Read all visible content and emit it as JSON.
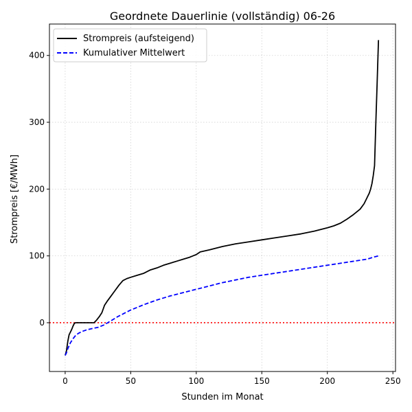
{
  "chart_data": {
    "type": "line",
    "title": "Geordnete Dauerlinie (vollständig) 06-26",
    "xlabel": "Stunden im Monat",
    "ylabel": "Strompreis [€/MWh]",
    "xlim": [
      -12,
      252
    ],
    "ylim": [
      -73,
      447
    ],
    "xticks": [
      0,
      50,
      100,
      150,
      200,
      250
    ],
    "yticks": [
      0,
      100,
      200,
      300,
      400
    ],
    "grid": true,
    "legend_position": "top-left",
    "reference_line": {
      "y": 0,
      "color": "#ff0000",
      "style": "dotted"
    },
    "series": [
      {
        "name": "Strompreis (aufsteigend)",
        "color": "#000000",
        "style": "solid",
        "x": [
          0,
          1,
          2,
          3,
          4,
          5,
          6,
          7,
          8,
          9,
          10,
          12,
          15,
          18,
          20,
          22,
          24,
          26,
          28,
          30,
          32,
          35,
          38,
          41,
          44,
          47,
          50,
          55,
          60,
          65,
          70,
          75,
          80,
          85,
          90,
          95,
          100,
          103,
          110,
          120,
          130,
          140,
          150,
          160,
          170,
          180,
          190,
          200,
          205,
          210,
          215,
          220,
          225,
          228,
          230,
          232,
          233,
          234,
          235,
          236,
          237,
          238,
          239
        ],
        "values": [
          -49,
          -42,
          -28,
          -18,
          -14,
          -10,
          -5,
          -1,
          0,
          0,
          0,
          0,
          0,
          0,
          0,
          0,
          4,
          9,
          15,
          26,
          32,
          40,
          48,
          56,
          63,
          66,
          68,
          71,
          74,
          79,
          82,
          86,
          89,
          92,
          95,
          98,
          102,
          106,
          109,
          114,
          118,
          121,
          124,
          127,
          130,
          133,
          137,
          142,
          145,
          149,
          155,
          162,
          170,
          178,
          186,
          194,
          200,
          208,
          220,
          235,
          300,
          360,
          423
        ]
      },
      {
        "name": "Kumulativer Mittelwert",
        "color": "#0000ff",
        "style": "dashed",
        "x": [
          0,
          1,
          2,
          4,
          6,
          8,
          10,
          13,
          16,
          20,
          25,
          30,
          35,
          40,
          45,
          50,
          60,
          70,
          80,
          90,
          100,
          110,
          120,
          130,
          140,
          150,
          160,
          170,
          180,
          190,
          200,
          210,
          220,
          230,
          235,
          239
        ],
        "values": [
          -49,
          -45,
          -39,
          -30,
          -24,
          -19,
          -16,
          -13,
          -11,
          -9,
          -7,
          -3,
          3,
          9,
          14,
          19,
          27,
          34,
          40,
          45,
          50,
          55,
          60,
          64,
          68,
          71,
          74,
          77,
          80,
          83,
          86,
          89,
          92,
          95,
          98,
          100
        ]
      }
    ]
  }
}
